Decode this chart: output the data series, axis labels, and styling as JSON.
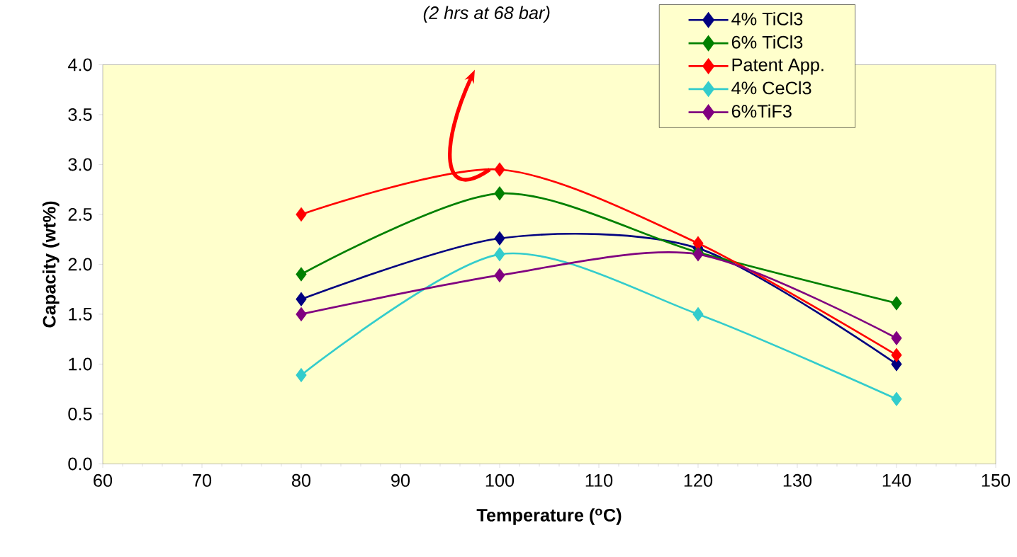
{
  "chart_data": {
    "type": "line",
    "title": "(2 hrs at 68 bar)",
    "xlabel": "Temperature ($^{o}$C)",
    "ylabel": "Capacity (wt%)",
    "x": [
      80,
      100,
      120,
      140
    ],
    "series": [
      {
        "name": "4% TiCl3",
        "color": "#000080",
        "values": [
          1.65,
          2.26,
          2.16,
          1.0
        ]
      },
      {
        "name": "6% TiCl3",
        "color": "#008000",
        "values": [
          1.9,
          2.71,
          2.12,
          1.61
        ]
      },
      {
        "name": "Patent App.",
        "color": "#ff0000",
        "values": [
          2.5,
          2.95,
          2.21,
          1.09
        ]
      },
      {
        "name": "4% CeCl3",
        "color": "#33cccc",
        "values": [
          0.89,
          2.1,
          1.5,
          0.65
        ]
      },
      {
        "name": "6%TiF3",
        "color": "#800080",
        "values": [
          1.5,
          1.89,
          2.1,
          1.26
        ]
      }
    ],
    "xlim": [
      60,
      150
    ],
    "xticks": [
      60,
      70,
      80,
      90,
      100,
      110,
      120,
      130,
      140,
      150
    ],
    "ylim": [
      0,
      4
    ],
    "yticks": [
      {
        "value": 0,
        "label": "0.0"
      },
      {
        "value": 0.5,
        "label": "0.5"
      },
      {
        "value": 1,
        "label": "1.0"
      },
      {
        "value": 1.5,
        "label": "1.5"
      },
      {
        "value": 2,
        "label": "2.0"
      },
      {
        "value": 2.5,
        "label": "2.5"
      },
      {
        "value": 3,
        "label": "3.0"
      },
      {
        "value": 3.5,
        "label": "3.5"
      },
      {
        "value": 4,
        "label": "4.0"
      }
    ],
    "grid": false,
    "legend": "top right",
    "marker": "diamond",
    "line_style": "solid"
  }
}
